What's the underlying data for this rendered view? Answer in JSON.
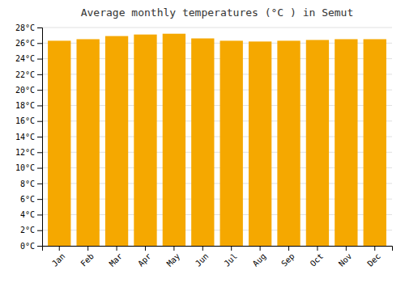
{
  "chart_data": {
    "type": "bar",
    "title": "Average monthly temperatures (°C ) in Semut",
    "categories": [
      "Jan",
      "Feb",
      "Mar",
      "Apr",
      "May",
      "Jun",
      "Jul",
      "Aug",
      "Sep",
      "Oct",
      "Nov",
      "Dec"
    ],
    "values": [
      26.3,
      26.5,
      26.9,
      27.1,
      27.2,
      26.6,
      26.3,
      26.2,
      26.3,
      26.4,
      26.5,
      26.5
    ],
    "color": "#F5A800",
    "ylim": [
      0,
      28
    ],
    "yticks": [
      {
        "value": 0,
        "label": "0°C"
      },
      {
        "value": 2,
        "label": "2°C"
      },
      {
        "value": 4,
        "label": "4°C"
      },
      {
        "value": 6,
        "label": "6°C"
      },
      {
        "value": 8,
        "label": "8°C"
      },
      {
        "value": 10,
        "label": "10°C"
      },
      {
        "value": 12,
        "label": "12°C"
      },
      {
        "value": 14,
        "label": "14°C"
      },
      {
        "value": 16,
        "label": "16°C"
      },
      {
        "value": 18,
        "label": "18°C"
      },
      {
        "value": 20,
        "label": "20°C"
      },
      {
        "value": 22,
        "label": "22°C"
      },
      {
        "value": 24,
        "label": "24°C"
      },
      {
        "value": 26,
        "label": "26°C"
      },
      {
        "value": 28,
        "label": "28°C"
      }
    ],
    "grid": true
  }
}
